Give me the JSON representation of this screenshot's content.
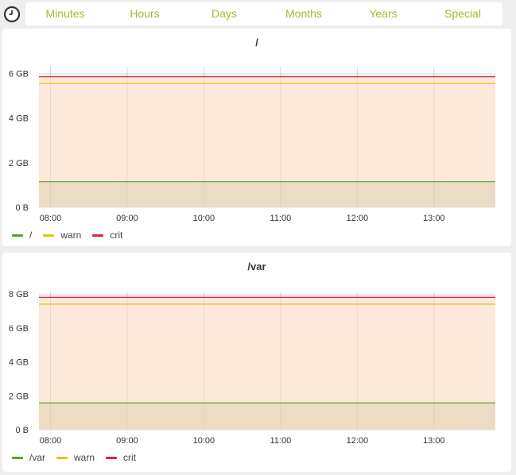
{
  "toolbar": {
    "tabs": [
      {
        "label": "Minutes"
      },
      {
        "label": "Hours"
      },
      {
        "label": "Days"
      },
      {
        "label": "Months"
      },
      {
        "label": "Years"
      },
      {
        "label": "Special"
      }
    ],
    "clock_icon": "clock-icon",
    "accent_color": "#a4ba2c"
  },
  "colors": {
    "used": "#5aa02c",
    "warn": "#e6c300",
    "crit": "#d9263a",
    "fill_total": "#fde6d6",
    "fill_used": "#ecdcc4"
  },
  "chart_data": [
    {
      "type": "area",
      "title": "/",
      "x": [
        "08:00",
        "09:00",
        "10:00",
        "11:00",
        "12:00",
        "13:00"
      ],
      "y_ticks": [
        "0 B",
        "2 GB",
        "4 GB",
        "6 GB"
      ],
      "ylim": [
        0,
        6.3
      ],
      "y_tick_values": [
        0,
        2,
        4,
        6
      ],
      "x_range": [
        7.85,
        13.8
      ],
      "grid": true,
      "legend_position": "bottom-left",
      "series": [
        {
          "name": "/",
          "value": 1.15,
          "color": "#5aa02c"
        },
        {
          "name": "warn",
          "value": 5.55,
          "color": "#e6c300"
        },
        {
          "name": "crit",
          "value": 5.85,
          "color": "#d9263a"
        }
      ],
      "total": 5.85
    },
    {
      "type": "area",
      "title": "/var",
      "x": [
        "08:00",
        "09:00",
        "10:00",
        "11:00",
        "12:00",
        "13:00"
      ],
      "y_ticks": [
        "0 B",
        "2 GB",
        "4 GB",
        "6 GB",
        "8 GB"
      ],
      "ylim": [
        0,
        8.1
      ],
      "y_tick_values": [
        0,
        2,
        4,
        6,
        8
      ],
      "x_range": [
        7.85,
        13.8
      ],
      "grid": true,
      "legend_position": "bottom-left",
      "series": [
        {
          "name": "/var",
          "value": 1.58,
          "color": "#5aa02c"
        },
        {
          "name": "warn",
          "value": 7.4,
          "color": "#e6c300"
        },
        {
          "name": "crit",
          "value": 7.8,
          "color": "#d9263a"
        }
      ],
      "total": 7.8
    }
  ]
}
